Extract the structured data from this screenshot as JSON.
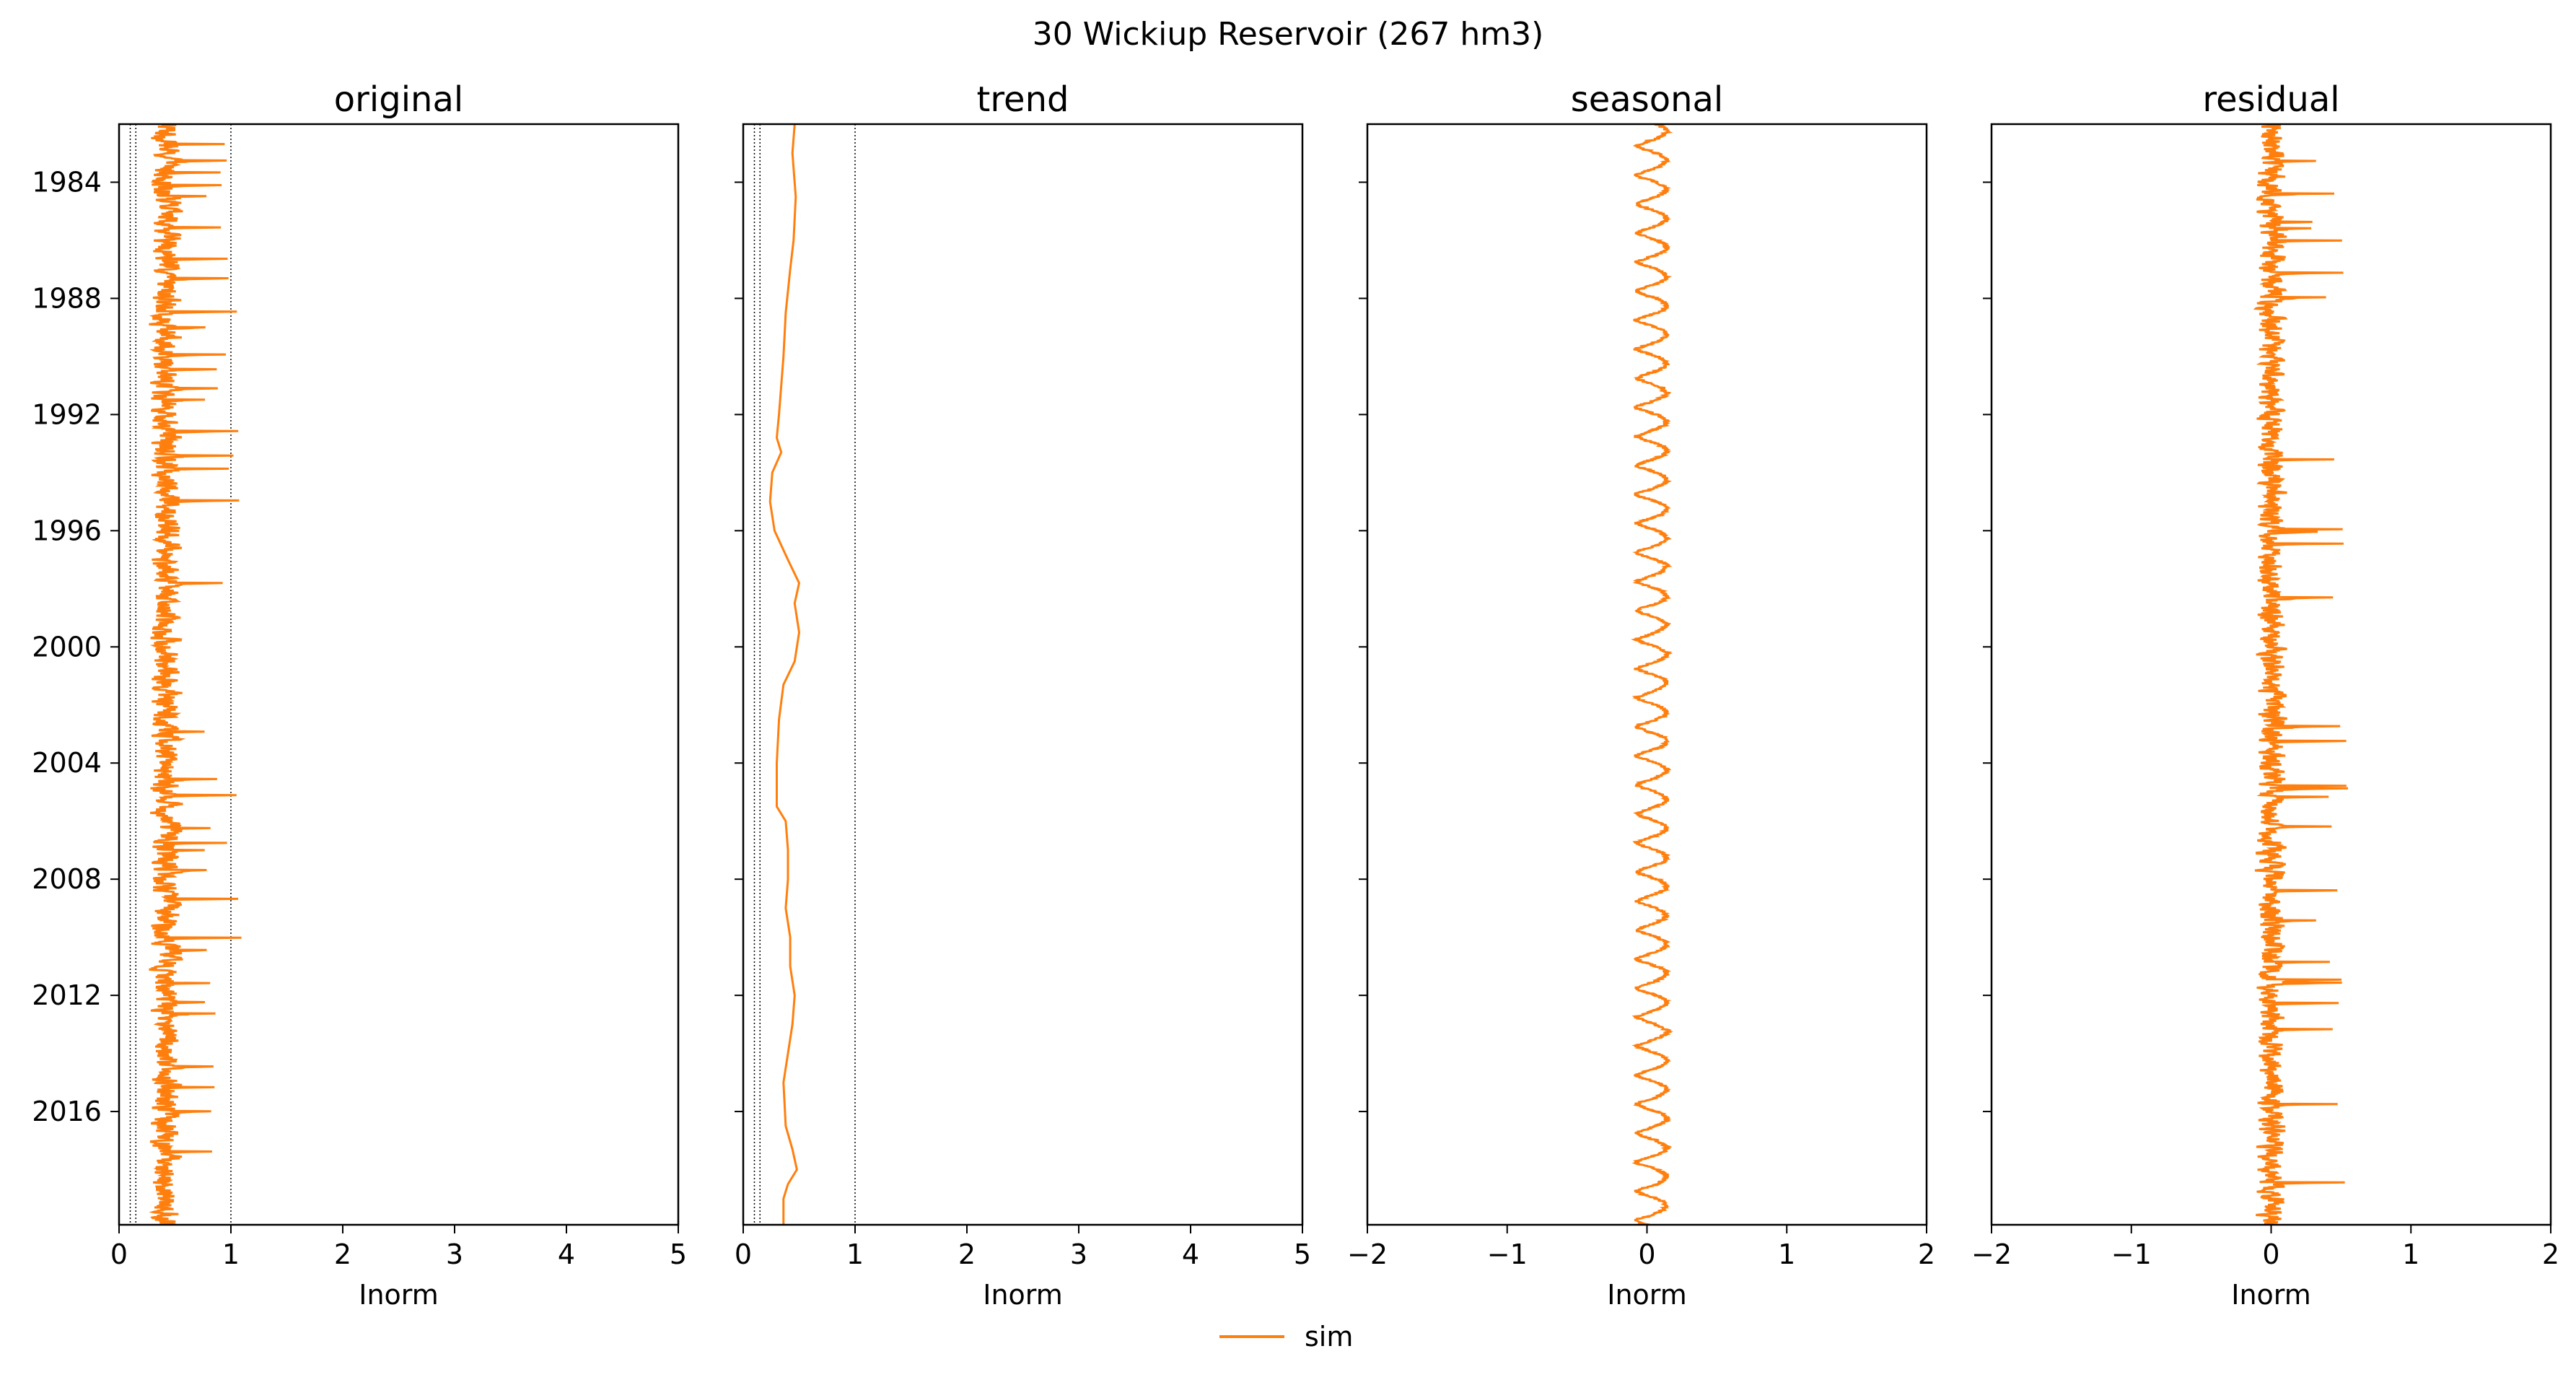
{
  "figure_title": "30  Wickiup Reservoir (267 hm3)",
  "colors": {
    "series": "#ff7f0e",
    "axes": "#000000",
    "ref_line": "#000000"
  },
  "legend": {
    "label": "sim",
    "placement": "bottom-center"
  },
  "chart_data": [
    {
      "type": "line",
      "title": "original",
      "xlabel": "Inorm",
      "xlim": [
        0,
        5
      ],
      "xticks": [
        "0",
        "1",
        "2",
        "3",
        "4",
        "5"
      ],
      "xtick_values": [
        0,
        1,
        2,
        3,
        4,
        5
      ],
      "ylim": [
        1982.0,
        2019.9
      ],
      "yticks": [
        "1984",
        "1988",
        "1992",
        "1996",
        "2000",
        "2004",
        "2008",
        "2012",
        "2016"
      ],
      "ytick_values": [
        1984,
        1988,
        1992,
        1996,
        2000,
        2004,
        2008,
        2012,
        2016
      ],
      "show_ytick_labels": true,
      "ref_lines": [
        0.1,
        0.15,
        1.0
      ],
      "series": [
        {
          "name": "sim",
          "center": 0.42,
          "amplitude": 0.2,
          "spikes": true,
          "spike_max": 1.1
        }
      ]
    },
    {
      "type": "line",
      "title": "trend",
      "xlabel": "Inorm",
      "xlim": [
        0,
        5
      ],
      "xticks": [
        "0",
        "1",
        "2",
        "3",
        "4",
        "5"
      ],
      "xtick_values": [
        0,
        1,
        2,
        3,
        4,
        5
      ],
      "ylim": [
        1982.0,
        2019.9
      ],
      "yticks": [
        "1984",
        "1988",
        "1992",
        "1996",
        "2000",
        "2004",
        "2008",
        "2012",
        "2016"
      ],
      "ytick_values": [
        1984,
        1988,
        1992,
        1996,
        2000,
        2004,
        2008,
        2012,
        2016
      ],
      "show_ytick_labels": false,
      "ref_lines": [
        0.1,
        0.15,
        1.0
      ],
      "series": [
        {
          "name": "sim",
          "points": [
            [
              0.46,
              1982.0
            ],
            [
              0.44,
              1983.0
            ],
            [
              0.47,
              1984.5
            ],
            [
              0.45,
              1986.0
            ],
            [
              0.42,
              1987.0
            ],
            [
              0.38,
              1988.5
            ],
            [
              0.36,
              1990.0
            ],
            [
              0.32,
              1992.0
            ],
            [
              0.3,
              1992.8
            ],
            [
              0.34,
              1993.3
            ],
            [
              0.26,
              1994.0
            ],
            [
              0.24,
              1995.0
            ],
            [
              0.28,
              1996.0
            ],
            [
              0.4,
              1997.0
            ],
            [
              0.5,
              1997.8
            ],
            [
              0.46,
              1998.5
            ],
            [
              0.5,
              1999.5
            ],
            [
              0.46,
              2000.5
            ],
            [
              0.36,
              2001.3
            ],
            [
              0.32,
              2002.5
            ],
            [
              0.3,
              2004.0
            ],
            [
              0.3,
              2005.5
            ],
            [
              0.38,
              2006.0
            ],
            [
              0.4,
              2007.0
            ],
            [
              0.4,
              2008.0
            ],
            [
              0.38,
              2009.0
            ],
            [
              0.42,
              2010.0
            ],
            [
              0.42,
              2011.0
            ],
            [
              0.46,
              2012.0
            ],
            [
              0.44,
              2013.0
            ],
            [
              0.4,
              2014.0
            ],
            [
              0.36,
              2015.0
            ],
            [
              0.38,
              2016.5
            ],
            [
              0.44,
              2017.3
            ],
            [
              0.48,
              2018.0
            ],
            [
              0.4,
              2018.5
            ],
            [
              0.36,
              2019.0
            ],
            [
              0.36,
              2019.9
            ]
          ]
        }
      ]
    },
    {
      "type": "line",
      "title": "seasonal",
      "xlabel": "Inorm",
      "xlim": [
        -2,
        2
      ],
      "xticks": [
        "−2",
        "−1",
        "0",
        "1",
        "2"
      ],
      "xtick_values": [
        -2,
        -1,
        0,
        1,
        2
      ],
      "ylim": [
        1982.0,
        2019.9
      ],
      "yticks": [
        "1984",
        "1988",
        "1992",
        "1996",
        "2000",
        "2004",
        "2008",
        "2012",
        "2016"
      ],
      "ytick_values": [
        1984,
        1988,
        1992,
        1996,
        2000,
        2004,
        2008,
        2012,
        2016
      ],
      "show_ytick_labels": false,
      "ref_lines": [],
      "series": [
        {
          "name": "sim",
          "seasonal_min": -0.08,
          "seasonal_max": 0.14,
          "period_years": 1
        }
      ]
    },
    {
      "type": "line",
      "title": "residual",
      "xlabel": "Inorm",
      "xlim": [
        -2,
        2
      ],
      "xticks": [
        "−2",
        "−1",
        "0",
        "1",
        "2"
      ],
      "xtick_values": [
        -2,
        -1,
        0,
        1,
        2
      ],
      "ylim": [
        1982.0,
        2019.9
      ],
      "yticks": [
        "1984",
        "1988",
        "1992",
        "1996",
        "2000",
        "2004",
        "2008",
        "2012",
        "2016"
      ],
      "ytick_values": [
        1984,
        1988,
        1992,
        1996,
        2000,
        2004,
        2008,
        2012,
        2016
      ],
      "show_ytick_labels": false,
      "ref_lines": [],
      "series": [
        {
          "name": "sim",
          "center": 0.0,
          "amplitude": 0.15,
          "spikes": true,
          "spike_max": 0.55
        }
      ]
    }
  ]
}
